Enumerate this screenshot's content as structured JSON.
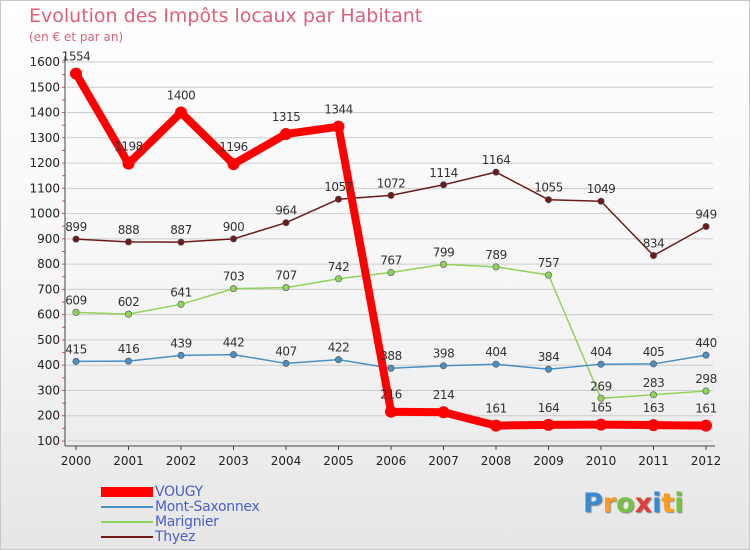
{
  "chart_data": {
    "type": "line",
    "title": "Evolution des Impôts locaux par Habitant",
    "subtitle": "(en € et par an)",
    "xlabel": "",
    "ylabel": "",
    "ylim": [
      100,
      1600
    ],
    "yticks": [
      100,
      200,
      300,
      400,
      500,
      600,
      700,
      800,
      900,
      1000,
      1100,
      1200,
      1300,
      1400,
      1500,
      1600
    ],
    "categories": [
      "2000",
      "2001",
      "2002",
      "2003",
      "2004",
      "2005",
      "2006",
      "2007",
      "2008",
      "2009",
      "2010",
      "2011",
      "2012"
    ],
    "series": [
      {
        "name": "VOUGY",
        "values": [
          1554,
          1198,
          1400,
          1196,
          1315,
          1344,
          216,
          214,
          161,
          164,
          165,
          163,
          161
        ],
        "color": "#ff0000"
      },
      {
        "name": "Mont-Saxonnex",
        "values": [
          415,
          416,
          439,
          442,
          407,
          422,
          388,
          398,
          404,
          384,
          404,
          405,
          440
        ],
        "color": "#4a8fc4"
      },
      {
        "name": "Marignier",
        "values": [
          609,
          602,
          641,
          703,
          707,
          742,
          767,
          799,
          789,
          757,
          269,
          283,
          298
        ],
        "color": "#8fd45a"
      },
      {
        "name": "Thyez",
        "values": [
          899,
          888,
          887,
          900,
          964,
          1057,
          1072,
          1114,
          1164,
          1055,
          1049,
          834,
          949
        ],
        "color": "#6e1a1a"
      }
    ],
    "legend_position": "bottom-left"
  },
  "logo": {
    "letters": [
      "P",
      "r",
      "o",
      "x",
      "i",
      "t",
      "i"
    ],
    "colors": [
      "#3a8ad0",
      "#ff9a1a",
      "#7ac043",
      "#e03a3a",
      "#3a8ad0",
      "#ff9a1a",
      "#7ac043"
    ]
  },
  "colors": {
    "title": "#e0607a",
    "grid": "#cccccc",
    "axis_text": "#222222",
    "label_text": "#333333",
    "legend_text": "#4a5fd0"
  }
}
